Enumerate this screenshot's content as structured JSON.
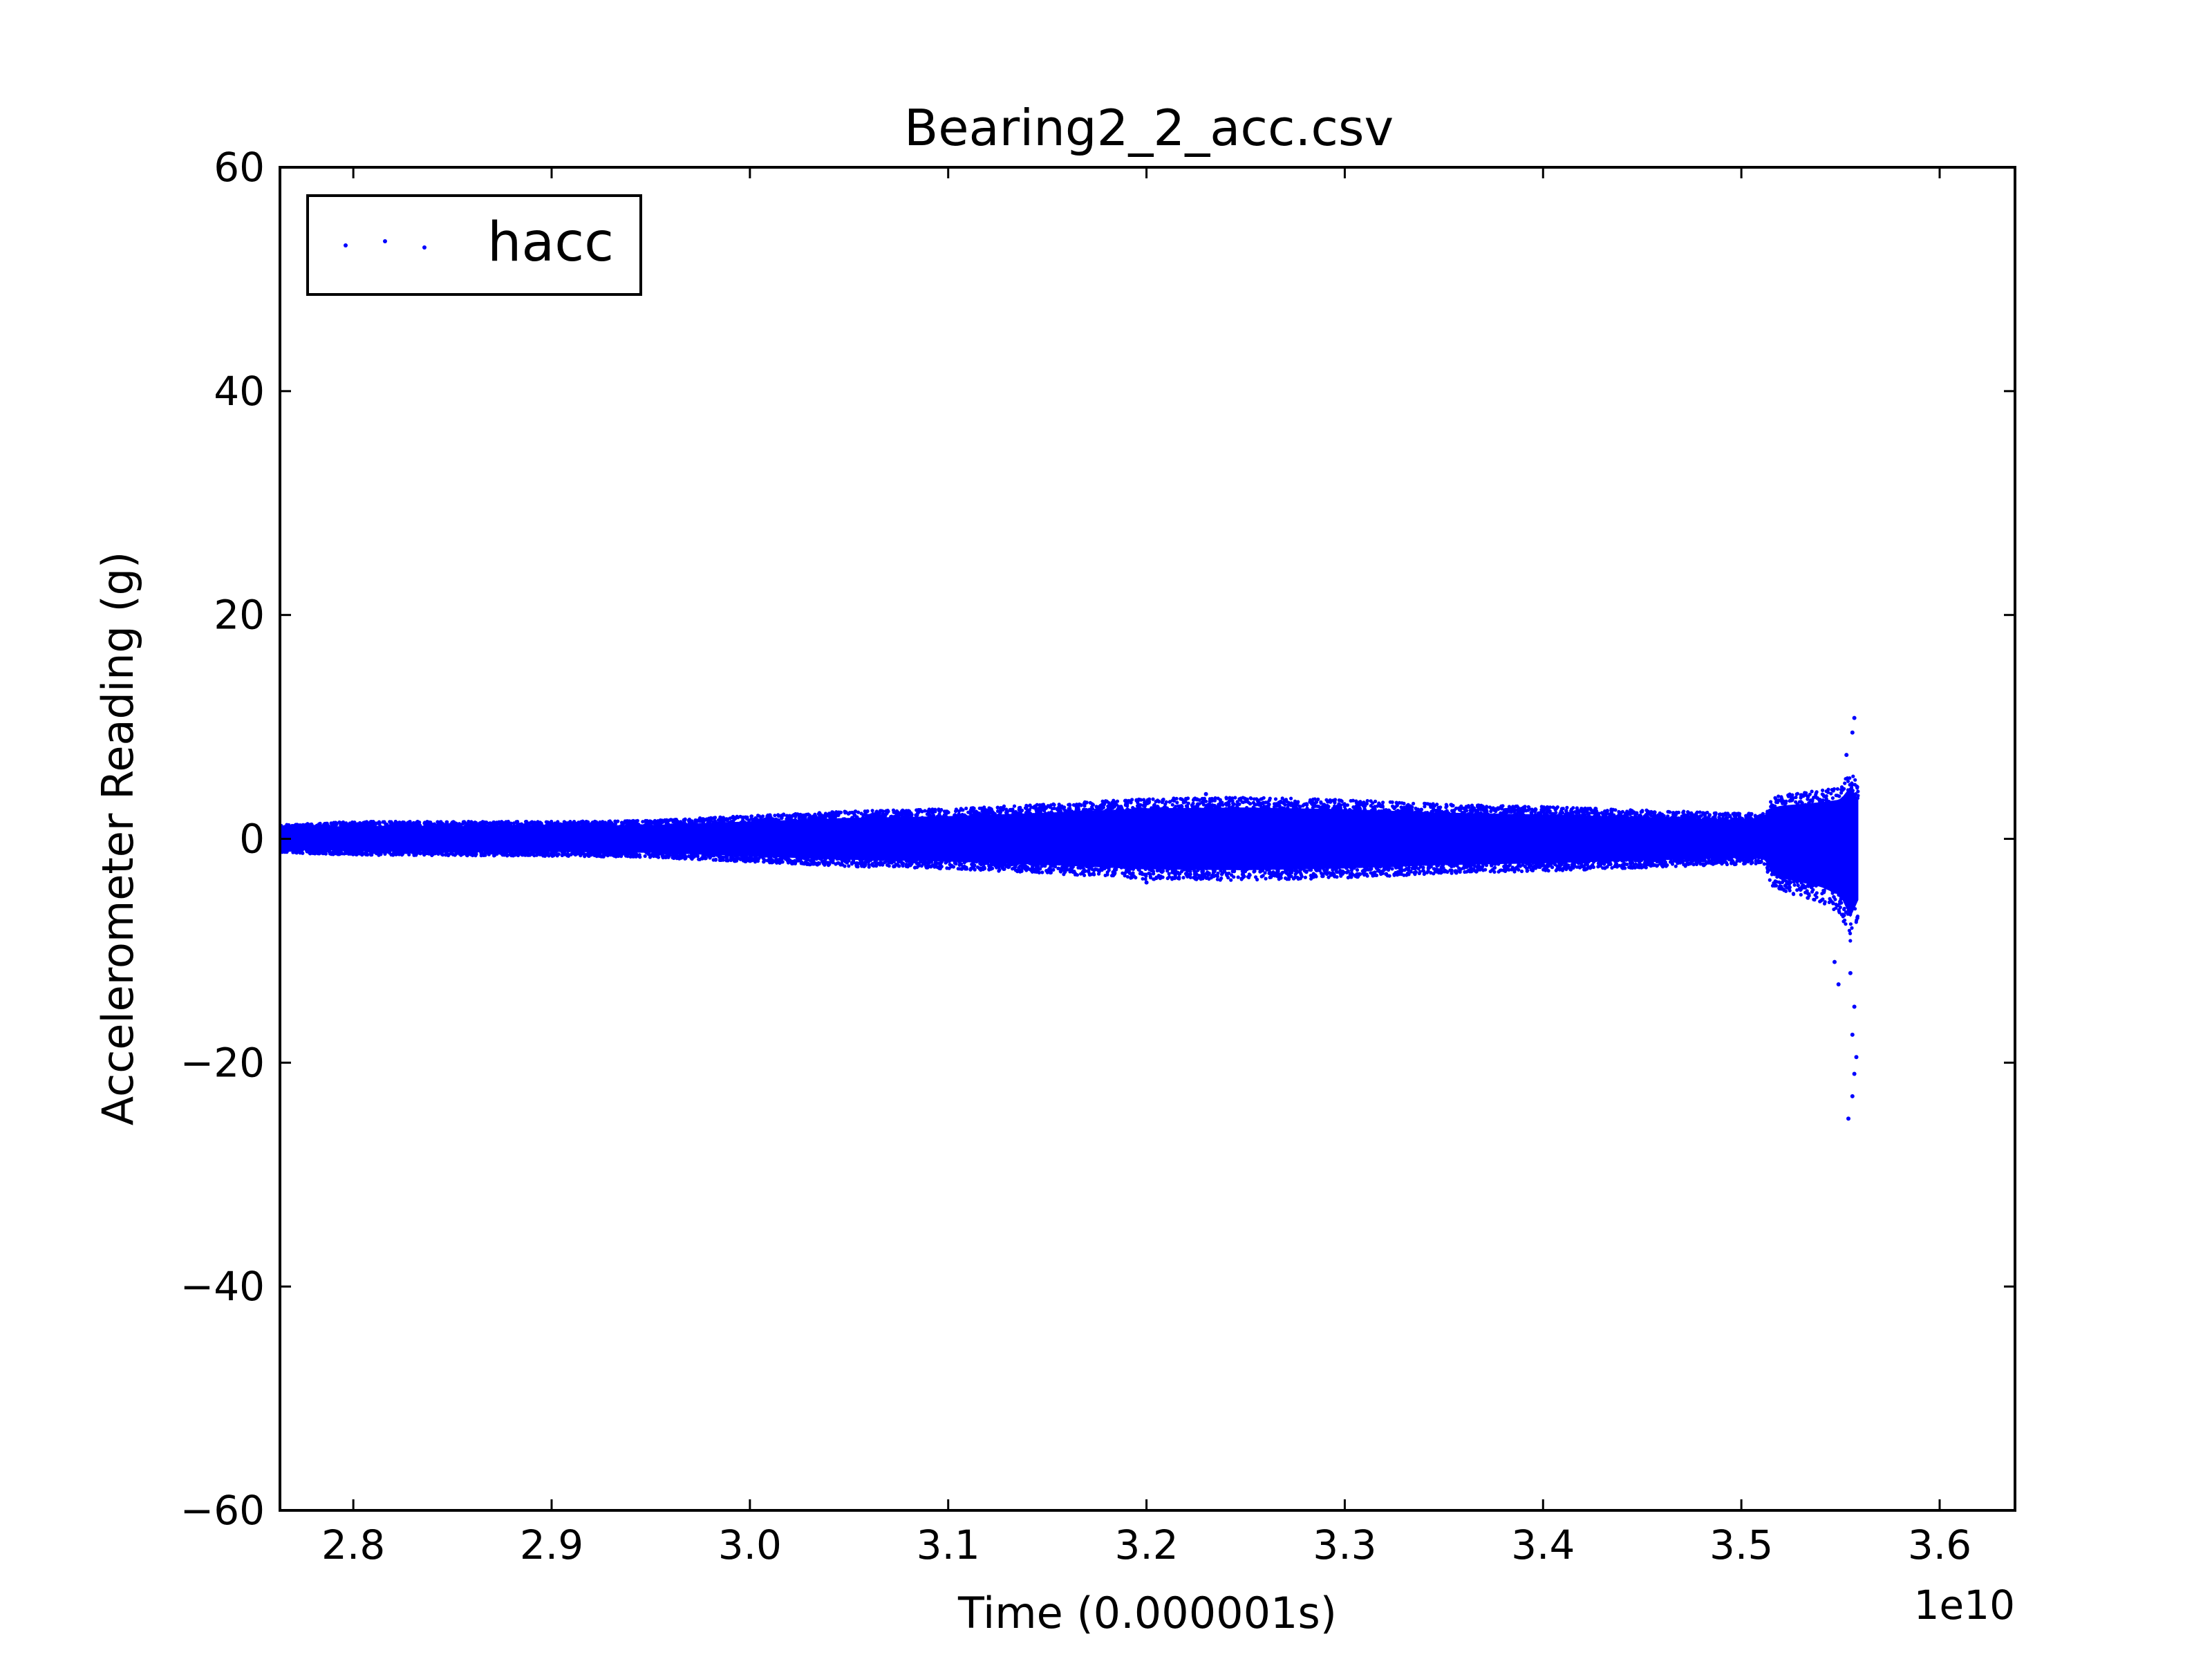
{
  "chart_data": {
    "type": "scatter",
    "title": "Bearing2_2_acc.csv",
    "xlabel": "Time (0.000001s)",
    "ylabel": "Accelerometer Reading (g)",
    "x_offset_label": "1e10",
    "xlim": [
      2.763,
      3.638
    ],
    "ylim": [
      -60,
      60
    ],
    "x_ticks": [
      2.8,
      2.9,
      3.0,
      3.1,
      3.2,
      3.3,
      3.4,
      3.5,
      3.6
    ],
    "x_tick_labels": [
      "2.8",
      "2.9",
      "3.0",
      "3.1",
      "3.2",
      "3.3",
      "3.4",
      "3.5",
      "3.6"
    ],
    "y_ticks": [
      -60,
      -40,
      -20,
      0,
      20,
      40,
      60
    ],
    "y_tick_labels": [
      "−60",
      "−40",
      "−20",
      "0",
      "20",
      "40",
      "60"
    ],
    "grid": false,
    "legend_position": "top-left",
    "series": [
      {
        "name": "hacc",
        "color": "#0000ff",
        "x_range": [
          2.763,
          3.559
        ],
        "envelope": {
          "x": [
            2.763,
            2.8,
            2.9,
            2.95,
            3.0,
            3.05,
            3.1,
            3.15,
            3.2,
            3.25,
            3.3,
            3.35,
            3.4,
            3.45,
            3.5,
            3.512,
            3.515,
            3.52,
            3.53,
            3.54,
            3.55,
            3.555,
            3.559
          ],
          "upper": [
            1.2,
            1.5,
            1.5,
            1.6,
            2.0,
            2.4,
            2.6,
            3.0,
            3.5,
            3.6,
            3.4,
            3.0,
            2.8,
            2.5,
            2.2,
            2.2,
            3.5,
            3.8,
            4.0,
            4.2,
            4.5,
            6.0,
            4.5
          ],
          "lower": [
            -1.2,
            -1.4,
            -1.5,
            -1.6,
            -2.0,
            -2.4,
            -2.6,
            -3.0,
            -3.5,
            -3.6,
            -3.4,
            -3.0,
            -2.8,
            -2.5,
            -2.2,
            -2.2,
            -4.0,
            -4.5,
            -5.0,
            -5.5,
            -6.5,
            -9.0,
            -7.0
          ]
        },
        "outliers": [
          {
            "x": 3.557,
            "y": 10.8
          },
          {
            "x": 3.556,
            "y": 9.5
          },
          {
            "x": 3.553,
            "y": 7.5
          },
          {
            "x": 3.555,
            "y": -12.0
          },
          {
            "x": 3.557,
            "y": -15.0
          },
          {
            "x": 3.556,
            "y": -17.5
          },
          {
            "x": 3.558,
            "y": -19.5
          },
          {
            "x": 3.557,
            "y": -21.0
          },
          {
            "x": 3.556,
            "y": -23.0
          },
          {
            "x": 3.554,
            "y": -25.0
          },
          {
            "x": 3.547,
            "y": -11.0
          },
          {
            "x": 3.549,
            "y": -13.0
          },
          {
            "x": 3.2,
            "y": -3.9
          },
          {
            "x": 3.23,
            "y": 4.0
          }
        ]
      }
    ]
  }
}
